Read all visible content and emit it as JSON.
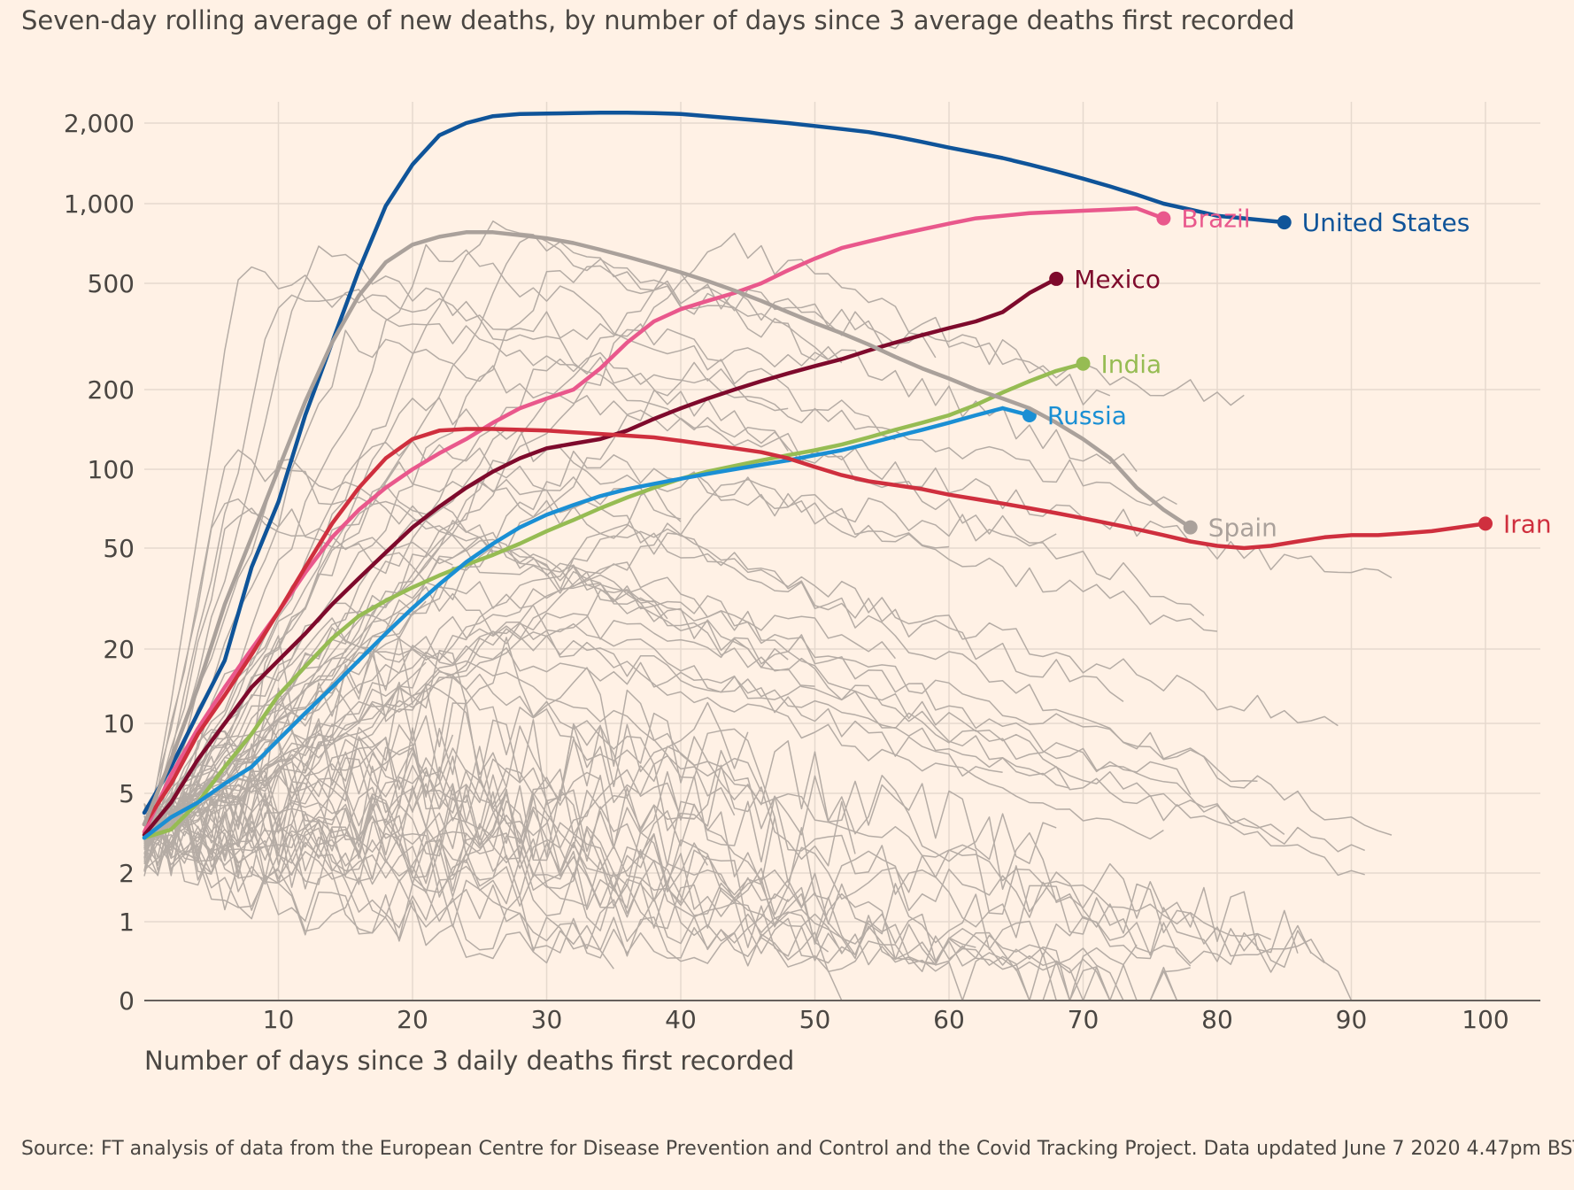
{
  "chart_data": {
    "type": "line",
    "title": "Seven-day rolling average of new deaths, by number of days since 3 average deaths first recorded",
    "xlabel": "Number of days since 3 daily deaths first recorded",
    "ylabel": "",
    "source": "Source: FT analysis of data from the European Centre for Disease Prevention and Control and the Covid Tracking Project. Data updated June 7 2020 4.47pm BST",
    "y_scale": "log",
    "xlim": [
      0,
      105
    ],
    "ylim": [
      0,
      2500
    ],
    "x_ticks": [
      10,
      20,
      30,
      40,
      50,
      60,
      70,
      80,
      90,
      100
    ],
    "y_ticks": [
      0,
      1,
      2,
      5,
      10,
      20,
      50,
      100,
      200,
      500,
      1000,
      2000
    ],
    "y_tick_labels": [
      "0",
      "1",
      "2",
      "5",
      "10",
      "20",
      "50",
      "100",
      "200",
      "500",
      "1,000",
      "2,000"
    ],
    "grid": true,
    "legend": "direct labels at line ends",
    "colors": {
      "background": "#fff1e5",
      "grid": "#e6d9ce",
      "axis": "#66605c",
      "other_countries": "#b5aca5"
    },
    "series": [
      {
        "name": "United States",
        "color": "#0f5499",
        "width": 4.5,
        "x": [
          0,
          2,
          4,
          6,
          8,
          10,
          12,
          14,
          16,
          18,
          20,
          22,
          24,
          26,
          28,
          30,
          32,
          34,
          36,
          38,
          40,
          42,
          44,
          46,
          48,
          50,
          52,
          54,
          56,
          58,
          60,
          62,
          64,
          66,
          68,
          70,
          72,
          74,
          76,
          78,
          80,
          82,
          84,
          85
        ],
        "y": [
          4,
          6.5,
          11,
          18,
          42,
          75,
          160,
          300,
          560,
          980,
          1400,
          1800,
          2000,
          2150,
          2200,
          2210,
          2220,
          2230,
          2230,
          2220,
          2200,
          2150,
          2100,
          2050,
          2000,
          1950,
          1900,
          1850,
          1780,
          1700,
          1620,
          1550,
          1480,
          1400,
          1320,
          1240,
          1160,
          1080,
          1000,
          950,
          900,
          880,
          860,
          850
        ]
      },
      {
        "name": "Brazil",
        "color": "#e9588c",
        "width": 4.5,
        "x": [
          0,
          2,
          4,
          6,
          8,
          10,
          12,
          14,
          16,
          18,
          20,
          22,
          24,
          26,
          28,
          30,
          32,
          34,
          36,
          38,
          40,
          42,
          44,
          46,
          48,
          50,
          52,
          54,
          56,
          58,
          60,
          62,
          64,
          66,
          68,
          70,
          72,
          74,
          76
        ],
        "y": [
          3.2,
          6,
          9.5,
          14,
          20,
          28,
          40,
          55,
          70,
          85,
          100,
          115,
          130,
          150,
          170,
          185,
          200,
          240,
          300,
          360,
          400,
          430,
          460,
          500,
          560,
          620,
          680,
          720,
          760,
          800,
          840,
          880,
          900,
          920,
          930,
          940,
          950,
          960,
          880
        ]
      },
      {
        "name": "Mexico",
        "color": "#7e0a2c",
        "width": 4.5,
        "x": [
          0,
          2,
          4,
          6,
          8,
          10,
          12,
          14,
          16,
          18,
          20,
          22,
          24,
          26,
          28,
          30,
          32,
          34,
          36,
          38,
          40,
          42,
          44,
          46,
          48,
          50,
          52,
          54,
          56,
          58,
          60,
          62,
          64,
          66,
          68
        ],
        "y": [
          3.1,
          4.5,
          7,
          10,
          14,
          18,
          23,
          30,
          38,
          48,
          60,
          72,
          85,
          98,
          110,
          120,
          125,
          130,
          140,
          155,
          170,
          185,
          200,
          215,
          230,
          245,
          260,
          280,
          300,
          320,
          340,
          360,
          390,
          460,
          520
        ]
      },
      {
        "name": "India",
        "color": "#96bc53",
        "width": 4.5,
        "x": [
          0,
          2,
          4,
          6,
          8,
          10,
          12,
          14,
          16,
          18,
          20,
          22,
          24,
          26,
          28,
          30,
          32,
          34,
          36,
          38,
          40,
          42,
          44,
          46,
          48,
          50,
          52,
          54,
          56,
          58,
          60,
          62,
          64,
          66,
          68,
          70
        ],
        "y": [
          3,
          3.3,
          4.5,
          6.5,
          9,
          13,
          17,
          22,
          27,
          31,
          35,
          39,
          43,
          47,
          52,
          58,
          64,
          71,
          78,
          85,
          92,
          98,
          103,
          108,
          113,
          118,
          124,
          132,
          141,
          150,
          160,
          175,
          195,
          215,
          235,
          250
        ]
      },
      {
        "name": "Russia",
        "color": "#1a8fd4",
        "width": 4.5,
        "x": [
          0,
          2,
          4,
          6,
          8,
          10,
          12,
          14,
          16,
          18,
          20,
          22,
          24,
          26,
          28,
          30,
          32,
          34,
          36,
          38,
          40,
          42,
          44,
          46,
          48,
          50,
          52,
          54,
          56,
          58,
          60,
          62,
          64,
          66
        ],
        "y": [
          3,
          3.8,
          4.5,
          5.5,
          6.5,
          8.5,
          11,
          14,
          18,
          23,
          29,
          36,
          44,
          52,
          60,
          67,
          73,
          79,
          84,
          88,
          92,
          96,
          100,
          104,
          108,
          113,
          118,
          125,
          133,
          141,
          150,
          160,
          170,
          160
        ]
      },
      {
        "name": "Iran",
        "color": "#cf2f3e",
        "width": 4.5,
        "x": [
          0,
          2,
          4,
          6,
          8,
          10,
          12,
          14,
          16,
          18,
          20,
          22,
          24,
          26,
          28,
          30,
          32,
          34,
          36,
          38,
          40,
          42,
          44,
          46,
          48,
          50,
          52,
          54,
          56,
          58,
          60,
          62,
          64,
          66,
          68,
          70,
          72,
          74,
          76,
          78,
          80,
          82,
          84,
          86,
          88,
          90,
          92,
          94,
          96,
          98,
          100
        ],
        "y": [
          3.5,
          5.5,
          9,
          13,
          19,
          28,
          42,
          62,
          85,
          110,
          130,
          140,
          142,
          142,
          141,
          140,
          138,
          136,
          134,
          132,
          128,
          124,
          120,
          116,
          110,
          102,
          95,
          90,
          87,
          84,
          80,
          77,
          74,
          71,
          68,
          65,
          62,
          59,
          56,
          53,
          51,
          50,
          51,
          53,
          55,
          56,
          56,
          57,
          58,
          60,
          62
        ]
      },
      {
        "name": "Spain",
        "color": "#aaa19b",
        "width": 4.5,
        "x": [
          0,
          2,
          4,
          6,
          8,
          10,
          12,
          14,
          16,
          18,
          20,
          22,
          24,
          26,
          28,
          30,
          32,
          34,
          36,
          38,
          40,
          42,
          44,
          46,
          48,
          50,
          52,
          54,
          56,
          58,
          60,
          62,
          64,
          66,
          68,
          70,
          72,
          74,
          76,
          78
        ],
        "y": [
          3.5,
          7,
          14,
          30,
          55,
          100,
          180,
          300,
          450,
          600,
          700,
          750,
          780,
          780,
          760,
          740,
          710,
          670,
          630,
          590,
          550,
          510,
          470,
          430,
          390,
          355,
          325,
          295,
          265,
          240,
          220,
          200,
          185,
          170,
          150,
          130,
          110,
          85,
          70,
          60
        ]
      }
    ]
  },
  "labels": {
    "y_ticks": [
      "0",
      "1",
      "2",
      "5",
      "10",
      "20",
      "50",
      "100",
      "200",
      "500",
      "1,000",
      "2,000"
    ],
    "x_ticks": [
      "10",
      "20",
      "30",
      "40",
      "50",
      "60",
      "70",
      "80",
      "90",
      "100"
    ]
  }
}
